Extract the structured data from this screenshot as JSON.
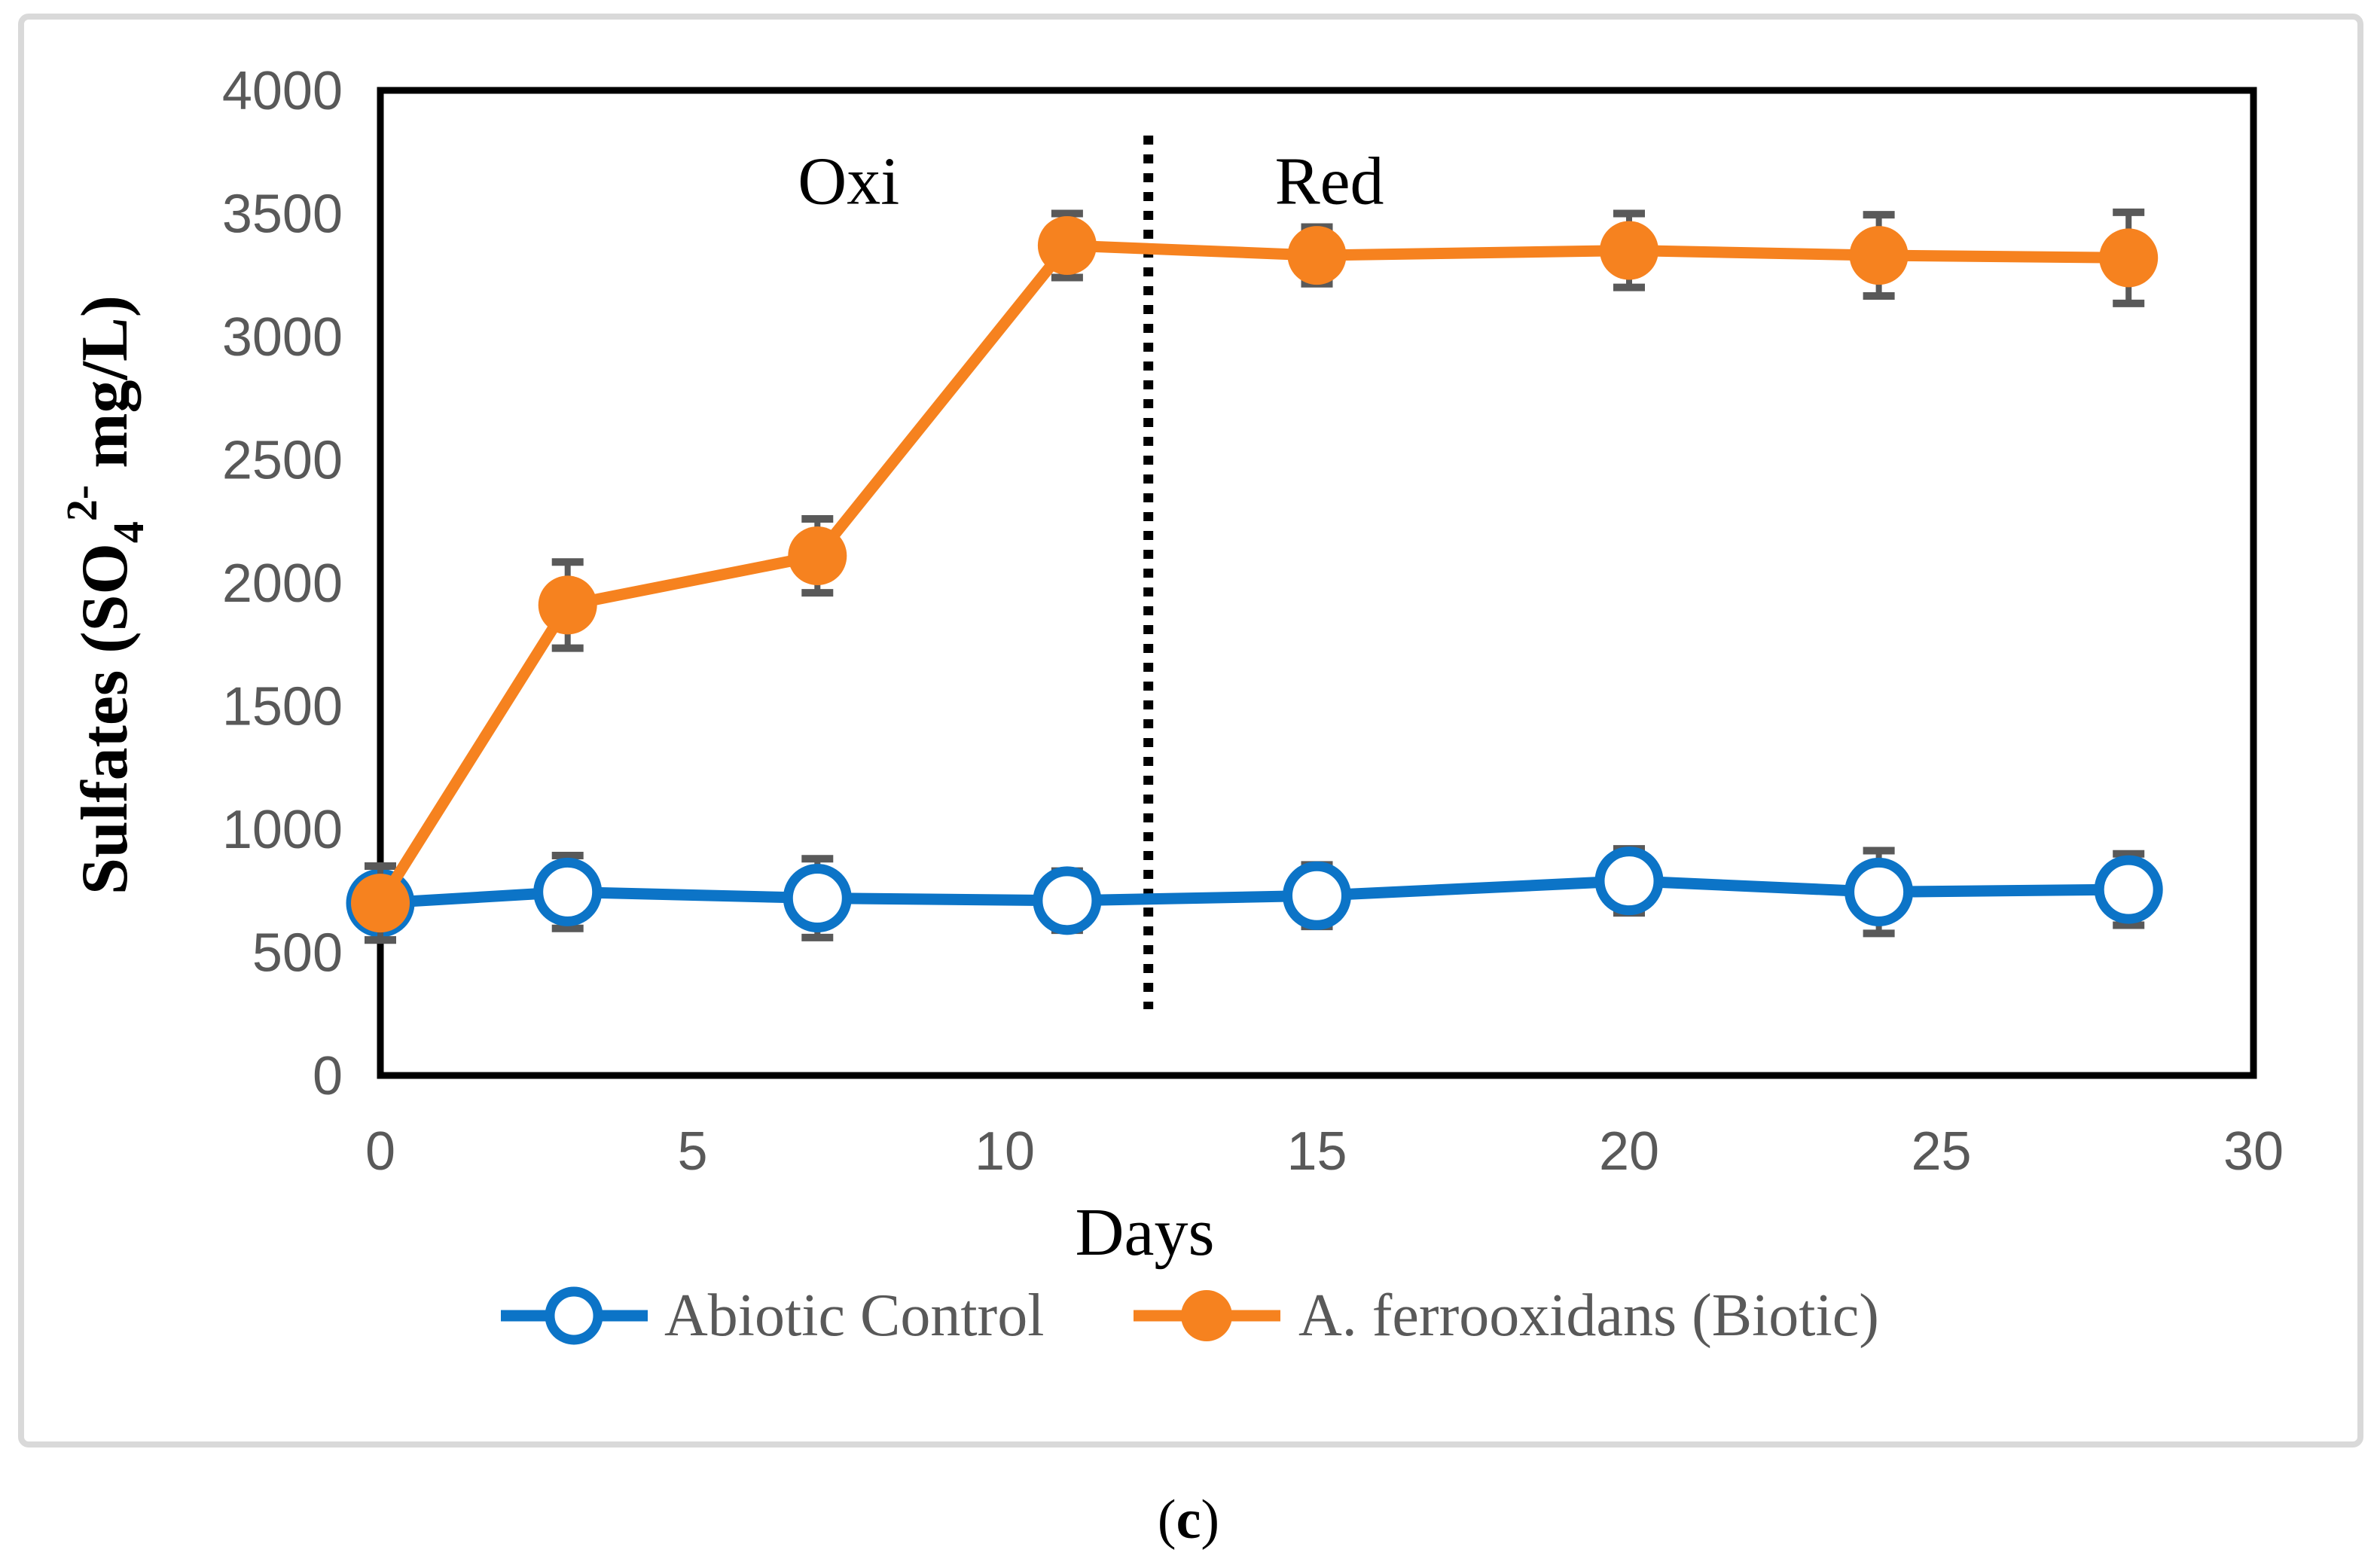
{
  "figure": {
    "caption": {
      "open": "(",
      "letter": "c",
      "close": ")"
    }
  },
  "chart_data": {
    "type": "line",
    "title": "",
    "xlabel": "Days",
    "ylabel": "Sulfates (SO4 2- mg/L)",
    "ylabel_parts": {
      "prefix": "Sulfates (SO",
      "subscript": "4",
      "superscript": "2-",
      "suffix": "mg/L)"
    },
    "x": [
      0,
      3,
      7,
      11,
      15,
      20,
      24,
      28
    ],
    "series": [
      {
        "name": "Abiotic Control",
        "marker": "open-circle",
        "color": "#0C74C7",
        "values": [
          700,
          745,
          720,
          710,
          730,
          790,
          745,
          755
        ],
        "errors": [
          150,
          148,
          160,
          120,
          125,
          130,
          168,
          145
        ]
      },
      {
        "name": "A. ferrooxidans (Biotic)",
        "marker": "filled-circle",
        "color": "#F6821F",
        "values": [
          700,
          1910,
          2110,
          3370,
          3330,
          3350,
          3330,
          3320
        ],
        "errors": [
          150,
          175,
          150,
          130,
          115,
          150,
          165,
          185
        ]
      }
    ],
    "xlim": [
      0,
      30
    ],
    "ylim": [
      0,
      4000
    ],
    "x_ticks": [
      0,
      5,
      10,
      15,
      20,
      25,
      30
    ],
    "y_ticks": [
      0,
      500,
      1000,
      1500,
      2000,
      2500,
      3000,
      3500,
      4000
    ],
    "grid": false,
    "legend_position": "bottom",
    "divider": {
      "style": "dotted",
      "day": 12.3
    },
    "annotations": [
      {
        "text": "Oxi",
        "day": 7.5,
        "value": 3540
      },
      {
        "text": "Red",
        "day": 15.2,
        "value": 3540
      }
    ],
    "colors": {
      "error_bar": "#595959",
      "tick_label": "#595959",
      "axis": "#000000",
      "legend_text": "#595959",
      "panel_border": "#D9D9D9"
    }
  }
}
